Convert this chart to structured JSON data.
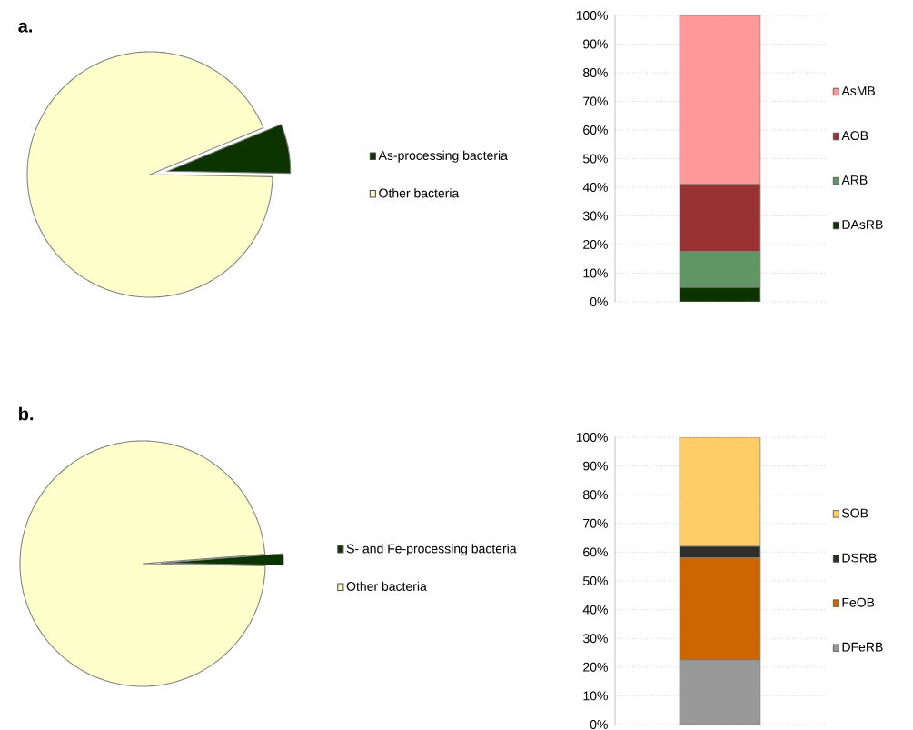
{
  "chart_data": [
    {
      "type": "pie",
      "annotations": [
        "a."
      ],
      "categories": [
        "As-processing bacteria",
        "Other bacteria"
      ],
      "values": [
        6.5,
        93.5
      ],
      "colors": [
        "#0d3300",
        "#ffffcc"
      ],
      "legend": "right"
    },
    {
      "type": "bar",
      "stacked": true,
      "categories": [
        null
      ],
      "ylim": [
        0,
        100
      ],
      "yticks": [
        {
          "value": 0,
          "label": "0%"
        },
        {
          "value": 10,
          "label": "10%"
        },
        {
          "value": 20,
          "label": "20%"
        },
        {
          "value": 30,
          "label": "30%"
        },
        {
          "value": 40,
          "label": "40%"
        },
        {
          "value": 50,
          "label": "50%"
        },
        {
          "value": 60,
          "label": "60%"
        },
        {
          "value": 70,
          "label": "70%"
        },
        {
          "value": 80,
          "label": "80%"
        },
        {
          "value": 90,
          "label": "90%"
        },
        {
          "value": 100,
          "label": "100%"
        }
      ],
      "grid": "y",
      "legend": "right",
      "series": [
        {
          "name": "DAsRB",
          "color": "#0d3300",
          "values": [
            5
          ]
        },
        {
          "name": "ARB",
          "color": "#5f9664",
          "values": [
            12.5
          ]
        },
        {
          "name": "AOB",
          "color": "#993333",
          "values": [
            23.5
          ]
        },
        {
          "name": "AsMB",
          "color": "#ff9999",
          "values": [
            59
          ]
        }
      ]
    },
    {
      "type": "pie",
      "annotations": [
        "b."
      ],
      "categories": [
        "S- and Fe-processing bacteria",
        "Other bacteria"
      ],
      "values": [
        1.5,
        98.5
      ],
      "colors": [
        "#0d3300",
        "#ffffcc"
      ],
      "legend": "right"
    },
    {
      "type": "bar",
      "stacked": true,
      "categories": [
        null
      ],
      "ylim": [
        0,
        100
      ],
      "yticks": [
        {
          "value": 0,
          "label": "0%"
        },
        {
          "value": 10,
          "label": "10%"
        },
        {
          "value": 20,
          "label": "20%"
        },
        {
          "value": 30,
          "label": "30%"
        },
        {
          "value": 40,
          "label": "40%"
        },
        {
          "value": 50,
          "label": "50%"
        },
        {
          "value": 60,
          "label": "60%"
        },
        {
          "value": 70,
          "label": "70%"
        },
        {
          "value": 80,
          "label": "80%"
        },
        {
          "value": 90,
          "label": "90%"
        },
        {
          "value": 100,
          "label": "100%"
        }
      ],
      "grid": "y",
      "legend": "right",
      "series": [
        {
          "name": "DFeRB",
          "color": "#999999",
          "values": [
            22.5
          ]
        },
        {
          "name": "FeOB",
          "color": "#cc6600",
          "values": [
            35.5
          ]
        },
        {
          "name": "DSRB",
          "color": "#2e2e2a",
          "values": [
            4
          ]
        },
        {
          "name": "SOB",
          "color": "#ffcc66",
          "values": [
            38
          ]
        }
      ]
    }
  ]
}
